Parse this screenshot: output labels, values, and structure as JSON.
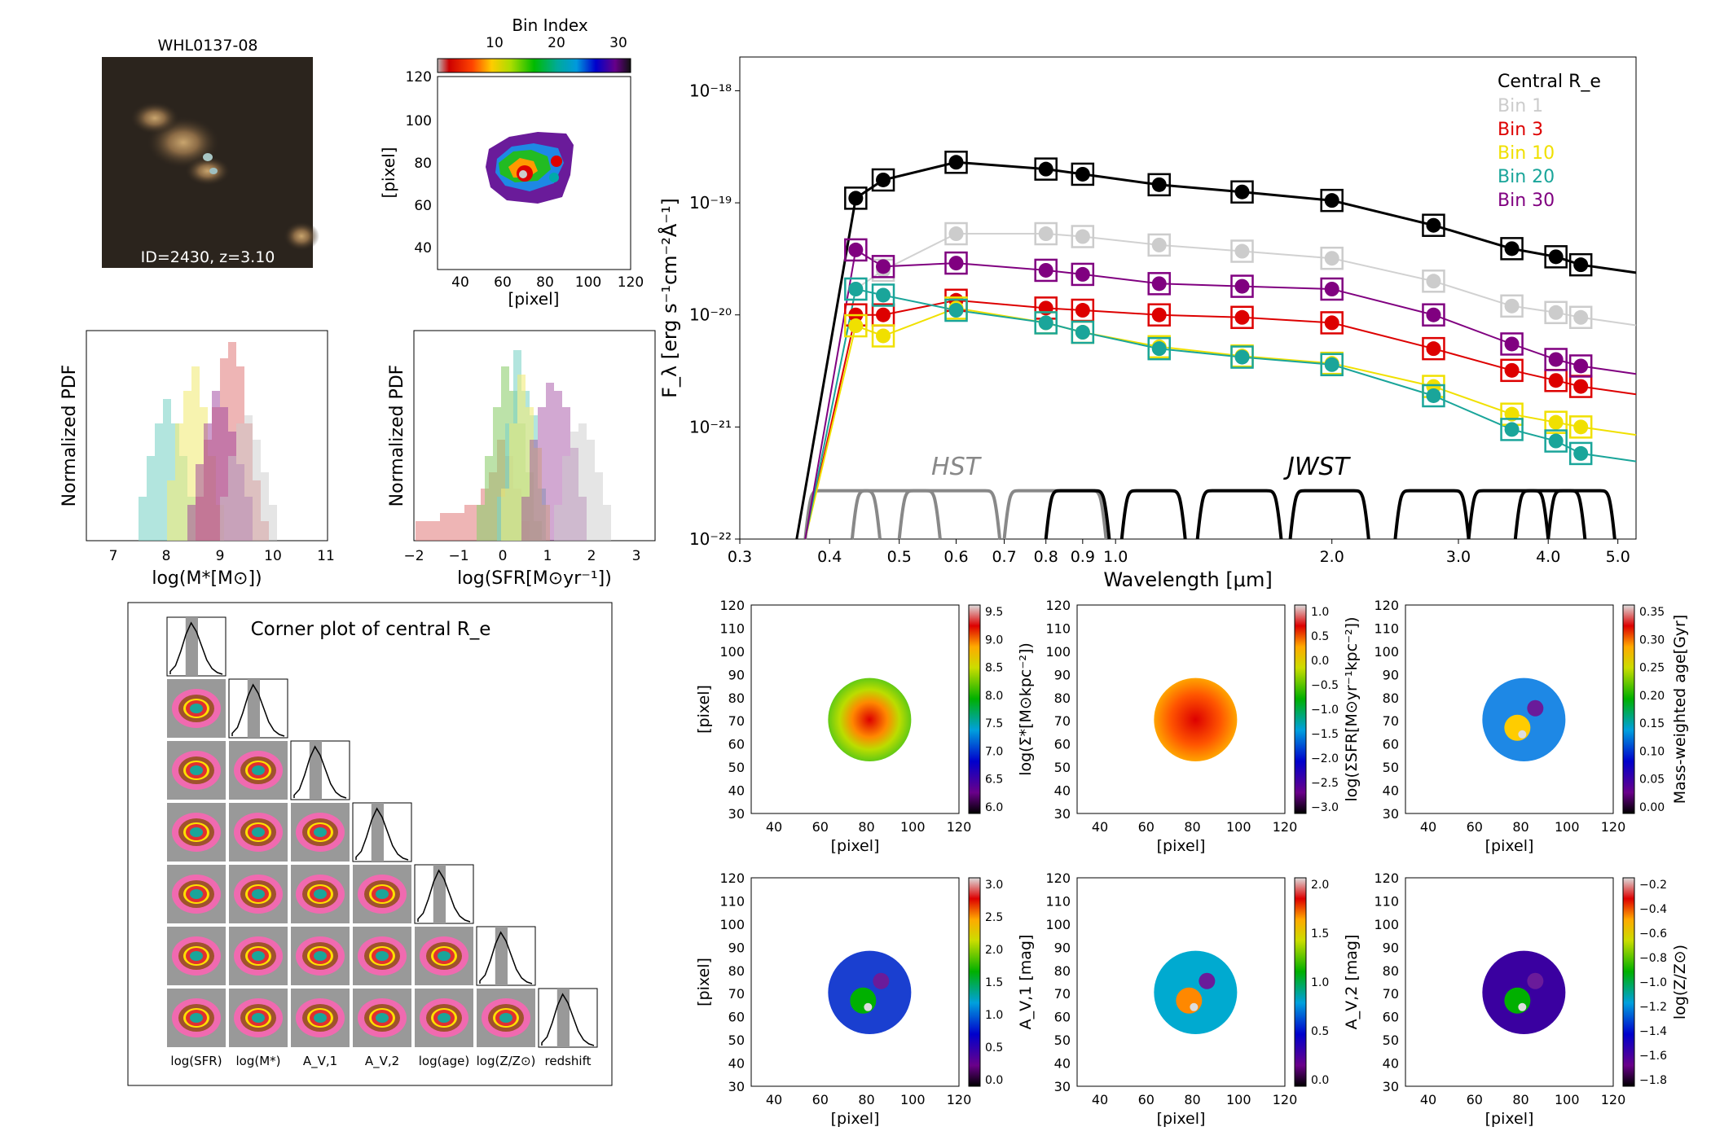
{
  "figure": {
    "image_panel": {
      "title": "WHL0137-08",
      "caption": "ID=2430, z=3.10"
    },
    "bin_map": {
      "colorbar_label": "Bin Index",
      "colorbar_ticks": [
        "10",
        "20",
        "30"
      ],
      "xlabel": "[pixel]",
      "ylabel": "[pixel]",
      "xticks": [
        "40",
        "60",
        "80",
        "100",
        "120"
      ],
      "yticks": [
        "40",
        "60",
        "80",
        "100",
        "120"
      ]
    },
    "mass_pdf": {
      "xlabel": "log(M*[M⊙])",
      "ylabel": "Normalized PDF",
      "xticks": [
        "7",
        "8",
        "9",
        "10",
        "11"
      ]
    },
    "sfr_pdf": {
      "xlabel": "log(SFR[M⊙yr⁻¹])",
      "ylabel": "Normalized PDF",
      "xticks": [
        "−2",
        "−1",
        "0",
        "1",
        "2",
        "3"
      ]
    },
    "corner": {
      "title": "Corner plot of central R_e",
      "params": [
        "log(SFR)",
        "log(M*)",
        "A_V,1",
        "A_V,2",
        "log(age)",
        "log(Z/Z⊙)",
        "redshift"
      ]
    },
    "maps": [
      {
        "cbar_label": "log(Σ*[M⊙kpc⁻²])",
        "cbar_ticks": [
          "9.5",
          "9.0",
          "8.5",
          "8.0",
          "7.5",
          "7.0",
          "6.5",
          "6.0"
        ]
      },
      {
        "cbar_label": "log(ΣSFR[M⊙yr⁻¹kpc⁻²])",
        "cbar_ticks": [
          "1.0",
          "0.5",
          "0.0",
          "−0.5",
          "−1.0",
          "−1.5",
          "−2.0",
          "−2.5",
          "−3.0"
        ]
      },
      {
        "cbar_label": "Mass-weighted age[Gyr]",
        "cbar_ticks": [
          "0.35",
          "0.30",
          "0.25",
          "0.20",
          "0.15",
          "0.10",
          "0.05",
          "0.00"
        ]
      },
      {
        "cbar_label": "A_V,1 [mag]",
        "cbar_ticks": [
          "3.0",
          "2.5",
          "2.0",
          "1.5",
          "1.0",
          "0.5",
          "0.0"
        ]
      },
      {
        "cbar_label": "A_V,2 [mag]",
        "cbar_ticks": [
          "2.0",
          "1.5",
          "1.0",
          "0.5",
          "0.0"
        ]
      },
      {
        "cbar_label": "log(Z/Z⊙)",
        "cbar_ticks": [
          "−0.2",
          "−0.4",
          "−0.6",
          "−0.8",
          "−1.0",
          "−1.2",
          "−1.4",
          "−1.6",
          "−1.8"
        ]
      }
    ],
    "map_axes": {
      "xlabel": "[pixel]",
      "ylabel": "[pixel]",
      "xticks": [
        "40",
        "60",
        "80",
        "100",
        "120"
      ],
      "yticks": [
        "30",
        "40",
        "50",
        "60",
        "70",
        "80",
        "90",
        "100",
        "110",
        "120"
      ]
    }
  },
  "chart_data": {
    "type": "line",
    "title": "",
    "xlabel": "Wavelength [μm]",
    "ylabel": "F_λ [erg s⁻¹cm⁻²Å⁻¹]",
    "xscale": "log",
    "yscale": "log",
    "xlim": [
      0.3,
      5.3
    ],
    "ylim": [
      1e-22,
      2e-18
    ],
    "xticks": [
      "0.3",
      "0.4",
      "0.5",
      "0.6",
      "0.7",
      "0.8",
      "0.9",
      "1.0",
      "2.0",
      "3.0",
      "4.0",
      "5.0"
    ],
    "yticks": [
      "10⁻²²",
      "10⁻²¹",
      "10⁻²⁰",
      "10⁻¹⁹",
      "10⁻¹⁸"
    ],
    "annotations": [
      "HST",
      "JWST"
    ],
    "legend_title": "Central R_e",
    "series": [
      {
        "name": "Central R_e",
        "color": "#000000",
        "x": [
          0.435,
          0.475,
          0.6,
          0.8,
          0.9,
          1.15,
          1.5,
          2.0,
          2.77,
          3.56,
          4.1,
          4.44
        ],
        "values": [
          1.1e-19,
          1.6e-19,
          2.3e-19,
          2e-19,
          1.8e-19,
          1.45e-19,
          1.25e-19,
          1.05e-19,
          6.3e-20,
          3.9e-20,
          3.3e-20,
          2.8e-20
        ]
      },
      {
        "name": "Bin 1",
        "color": "#cccccc",
        "x": [
          0.435,
          0.475,
          0.6,
          0.8,
          0.9,
          1.15,
          1.5,
          2.0,
          2.77,
          3.56,
          4.1,
          4.44
        ],
        "values": [
          1.7e-20,
          2.5e-20,
          5.3e-20,
          5.3e-20,
          5e-20,
          4.2e-20,
          3.7e-20,
          3.2e-20,
          2e-20,
          1.2e-20,
          1.05e-20,
          9.5e-21
        ]
      },
      {
        "name": "Bin 3",
        "color": "#dd0000",
        "x": [
          0.435,
          0.475,
          0.6,
          0.8,
          0.9,
          1.15,
          1.5,
          2.0,
          2.77,
          3.56,
          4.1,
          4.44
        ],
        "values": [
          1e-20,
          1e-20,
          1.35e-20,
          1.15e-20,
          1.1e-20,
          1e-20,
          9.5e-21,
          8.5e-21,
          5e-21,
          3.2e-21,
          2.6e-21,
          2.3e-21
        ]
      },
      {
        "name": "Bin 10",
        "color": "#f0e000",
        "x": [
          0.435,
          0.475,
          0.6,
          0.8,
          0.9,
          1.15,
          1.5,
          2.0,
          2.77,
          3.56,
          4.1,
          4.44
        ],
        "values": [
          8e-21,
          6.5e-21,
          1.15e-20,
          8.5e-21,
          7e-21,
          5.2e-21,
          4.3e-21,
          3.7e-21,
          2.3e-21,
          1.3e-21,
          1.1e-21,
          1e-21
        ]
      },
      {
        "name": "Bin 20",
        "color": "#1aa59a",
        "x": [
          0.435,
          0.475,
          0.6,
          0.8,
          0.9,
          1.15,
          1.5,
          2.0,
          2.77,
          3.56,
          4.1,
          4.44
        ],
        "values": [
          1.7e-20,
          1.5e-20,
          1.1e-20,
          8.5e-21,
          7e-21,
          5e-21,
          4.2e-21,
          3.6e-21,
          1.9e-21,
          9.5e-22,
          7.5e-22,
          5.8e-22
        ]
      },
      {
        "name": "Bin 30",
        "color": "#800080",
        "x": [
          0.435,
          0.475,
          0.6,
          0.8,
          0.9,
          1.15,
          1.5,
          2.0,
          2.77,
          3.56,
          4.1,
          4.44
        ],
        "values": [
          3.8e-20,
          2.7e-20,
          2.9e-20,
          2.5e-20,
          2.3e-20,
          1.9e-20,
          1.8e-20,
          1.7e-20,
          1e-20,
          5.5e-21,
          4e-21,
          3.5e-21
        ]
      }
    ]
  }
}
